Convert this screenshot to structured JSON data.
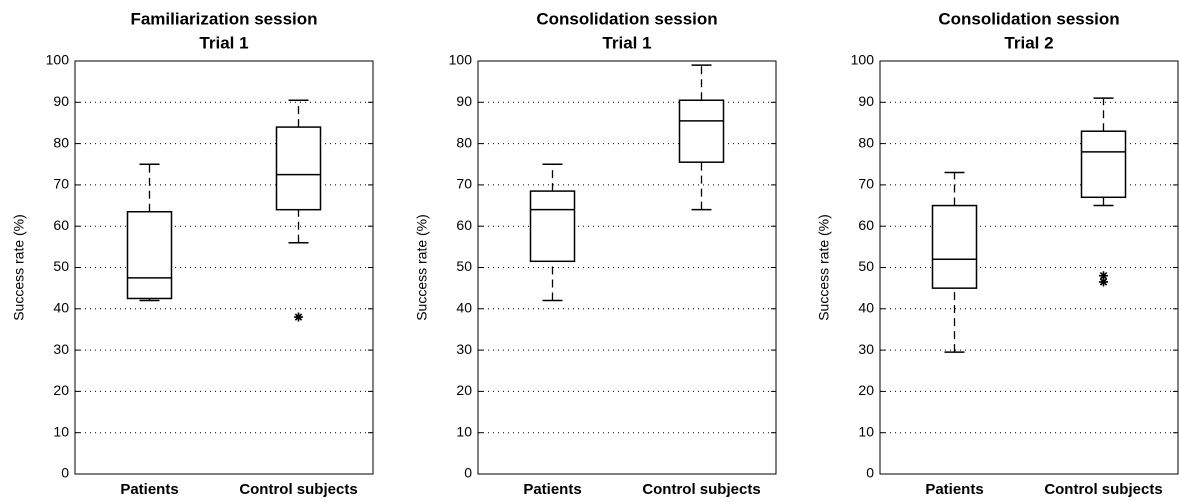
{
  "chart_data": [
    {
      "type": "box",
      "title": [
        "Familiarization session",
        "Trial 1"
      ],
      "ylabel": "Success rate (%)",
      "categories": [
        "Patients",
        "Control subjects"
      ],
      "boxes": [
        {
          "min": 42,
          "q1": 42.5,
          "median": 47.5,
          "q3": 63.5,
          "max": 75,
          "outliers": []
        },
        {
          "min": 56,
          "q1": 64,
          "median": 72.5,
          "q3": 84,
          "max": 90.5,
          "outliers": [
            38
          ]
        }
      ],
      "ylim": [
        0,
        100
      ],
      "yticks": [
        0,
        10,
        20,
        30,
        40,
        50,
        60,
        70,
        80,
        90,
        100
      ],
      "grid": true,
      "color": "#000000"
    },
    {
      "type": "box",
      "title": [
        "Consolidation session",
        "Trial 1"
      ],
      "ylabel": "Success rate (%)",
      "categories": [
        "Patients",
        "Control subjects"
      ],
      "boxes": [
        {
          "min": 42,
          "q1": 51.5,
          "median": 64,
          "q3": 68.5,
          "max": 75,
          "outliers": []
        },
        {
          "min": 64,
          "q1": 75.5,
          "median": 85.5,
          "q3": 90.5,
          "max": 99,
          "outliers": []
        }
      ],
      "ylim": [
        0,
        100
      ],
      "yticks": [
        0,
        10,
        20,
        30,
        40,
        50,
        60,
        70,
        80,
        90,
        100
      ],
      "grid": true,
      "color": "#000000"
    },
    {
      "type": "box",
      "title": [
        "Consolidation session",
        "Trial 2"
      ],
      "ylabel": "Success rate (%)",
      "categories": [
        "Patients",
        "Control subjects"
      ],
      "boxes": [
        {
          "min": 29.5,
          "q1": 45,
          "median": 52,
          "q3": 65,
          "max": 73,
          "outliers": []
        },
        {
          "min": 65,
          "q1": 67,
          "median": 78,
          "q3": 83,
          "max": 91,
          "outliers": [
            46.5,
            48
          ]
        }
      ],
      "ylim": [
        0,
        100
      ],
      "yticks": [
        0,
        10,
        20,
        30,
        40,
        50,
        60,
        70,
        80,
        90,
        100
      ],
      "grid": true,
      "color": "#000000"
    }
  ]
}
